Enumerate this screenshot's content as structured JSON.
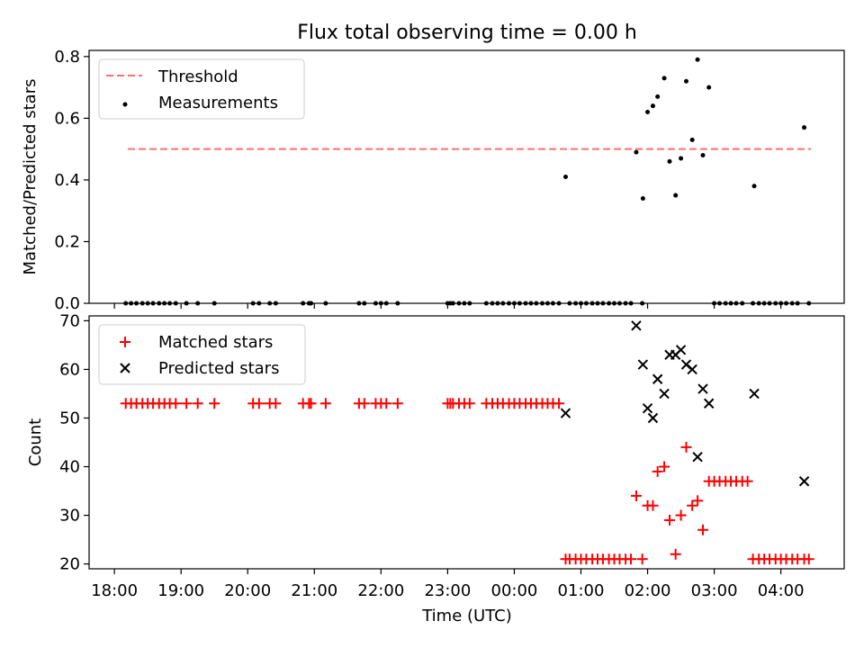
{
  "figure": {
    "title": "Flux total observing time = 0.00 h"
  },
  "chart_data": [
    {
      "type": "scatter",
      "ylabel": "Matched/Predicted stars",
      "ylim": [
        0,
        0.82
      ],
      "yticks": [
        "0.0",
        "0.2",
        "0.4",
        "0.6",
        "0.8"
      ],
      "ytick_values": [
        0,
        0.2,
        0.4,
        0.6,
        0.8
      ],
      "legend": {
        "placement": "upper-left",
        "entries": [
          "Threshold",
          "Measurements"
        ]
      },
      "threshold": {
        "name": "Threshold",
        "value": 0.5,
        "x_start": 0.2,
        "x_end": 10.45,
        "color": "#ff7070",
        "style": "dashed"
      },
      "series": [
        {
          "name": "Measurements",
          "color": "#000000",
          "marker": "dot",
          "points": [
            [
              0.17,
              0
            ],
            [
              0.25,
              0
            ],
            [
              0.33,
              0
            ],
            [
              0.42,
              0
            ],
            [
              0.5,
              0
            ],
            [
              0.58,
              0
            ],
            [
              0.67,
              0
            ],
            [
              0.75,
              0
            ],
            [
              0.83,
              0
            ],
            [
              0.92,
              0
            ],
            [
              1.08,
              0
            ],
            [
              1.25,
              0
            ],
            [
              1.5,
              0
            ],
            [
              2.08,
              0
            ],
            [
              2.17,
              0
            ],
            [
              2.33,
              0
            ],
            [
              2.42,
              0
            ],
            [
              2.83,
              0
            ],
            [
              2.92,
              0
            ],
            [
              2.95,
              0
            ],
            [
              3.17,
              0
            ],
            [
              3.67,
              0
            ],
            [
              3.75,
              0
            ],
            [
              3.92,
              0
            ],
            [
              4.0,
              0
            ],
            [
              4.08,
              0
            ],
            [
              4.25,
              0
            ],
            [
              5.0,
              0
            ],
            [
              5.04,
              0
            ],
            [
              5.08,
              0
            ],
            [
              5.17,
              0
            ],
            [
              5.25,
              0
            ],
            [
              5.33,
              0
            ],
            [
              5.58,
              0
            ],
            [
              5.67,
              0
            ],
            [
              5.75,
              0
            ],
            [
              5.83,
              0
            ],
            [
              5.92,
              0
            ],
            [
              6.0,
              0
            ],
            [
              6.08,
              0
            ],
            [
              6.17,
              0
            ],
            [
              6.25,
              0
            ],
            [
              6.33,
              0
            ],
            [
              6.42,
              0
            ],
            [
              6.5,
              0
            ],
            [
              6.58,
              0
            ],
            [
              6.67,
              0
            ],
            [
              6.83,
              0
            ],
            [
              6.92,
              0
            ],
            [
              7.0,
              0
            ],
            [
              7.08,
              0
            ],
            [
              7.17,
              0
            ],
            [
              7.25,
              0
            ],
            [
              7.33,
              0
            ],
            [
              7.42,
              0
            ],
            [
              7.5,
              0
            ],
            [
              7.58,
              0
            ],
            [
              7.67,
              0
            ],
            [
              7.75,
              0
            ],
            [
              7.92,
              0
            ],
            [
              9.0,
              0
            ],
            [
              9.08,
              0
            ],
            [
              9.17,
              0
            ],
            [
              9.25,
              0
            ],
            [
              9.33,
              0
            ],
            [
              9.42,
              0
            ],
            [
              9.58,
              0
            ],
            [
              9.67,
              0
            ],
            [
              9.75,
              0
            ],
            [
              9.83,
              0
            ],
            [
              9.92,
              0
            ],
            [
              10.0,
              0
            ],
            [
              10.08,
              0
            ],
            [
              10.17,
              0
            ],
            [
              10.25,
              0
            ],
            [
              10.42,
              0
            ],
            [
              6.77,
              0.41
            ],
            [
              7.83,
              0.49
            ],
            [
              7.93,
              0.34
            ],
            [
              8.0,
              0.62
            ],
            [
              8.08,
              0.64
            ],
            [
              8.15,
              0.67
            ],
            [
              8.25,
              0.73
            ],
            [
              8.33,
              0.46
            ],
            [
              8.42,
              0.35
            ],
            [
              8.5,
              0.47
            ],
            [
              8.58,
              0.72
            ],
            [
              8.67,
              0.53
            ],
            [
              8.75,
              0.79
            ],
            [
              8.83,
              0.48
            ],
            [
              8.92,
              0.7
            ],
            [
              9.6,
              0.38
            ],
            [
              10.35,
              0.57
            ]
          ]
        }
      ]
    },
    {
      "type": "scatter",
      "xlabel": "Time (UTC)",
      "ylabel": "Count",
      "ylim": [
        19,
        71
      ],
      "yticks": [
        "20",
        "30",
        "40",
        "50",
        "60",
        "70"
      ],
      "ytick_values": [
        20,
        30,
        40,
        50,
        60,
        70
      ],
      "xticks": [
        "18:00",
        "19:00",
        "20:00",
        "21:00",
        "22:00",
        "23:00",
        "00:00",
        "01:00",
        "02:00",
        "03:00",
        "04:00"
      ],
      "xtick_values": [
        0,
        1,
        2,
        3,
        4,
        5,
        6,
        7,
        8,
        9,
        10
      ],
      "xlim": [
        -0.38,
        10.95
      ],
      "legend": {
        "placement": "upper-left",
        "entries": [
          "Matched stars",
          "Predicted stars"
        ]
      },
      "series": [
        {
          "name": "Matched stars",
          "color": "#ff0000",
          "marker": "plus",
          "points": [
            [
              0.17,
              53
            ],
            [
              0.25,
              53
            ],
            [
              0.33,
              53
            ],
            [
              0.42,
              53
            ],
            [
              0.5,
              53
            ],
            [
              0.58,
              53
            ],
            [
              0.67,
              53
            ],
            [
              0.75,
              53
            ],
            [
              0.83,
              53
            ],
            [
              0.92,
              53
            ],
            [
              1.08,
              53
            ],
            [
              1.25,
              53
            ],
            [
              1.5,
              53
            ],
            [
              2.08,
              53
            ],
            [
              2.17,
              53
            ],
            [
              2.33,
              53
            ],
            [
              2.42,
              53
            ],
            [
              2.83,
              53
            ],
            [
              2.92,
              53
            ],
            [
              2.95,
              53
            ],
            [
              3.17,
              53
            ],
            [
              3.67,
              53
            ],
            [
              3.75,
              53
            ],
            [
              3.92,
              53
            ],
            [
              4.0,
              53
            ],
            [
              4.08,
              53
            ],
            [
              4.25,
              53
            ],
            [
              5.0,
              53
            ],
            [
              5.04,
              53
            ],
            [
              5.08,
              53
            ],
            [
              5.17,
              53
            ],
            [
              5.25,
              53
            ],
            [
              5.33,
              53
            ],
            [
              5.58,
              53
            ],
            [
              5.67,
              53
            ],
            [
              5.75,
              53
            ],
            [
              5.83,
              53
            ],
            [
              5.92,
              53
            ],
            [
              6.0,
              53
            ],
            [
              6.08,
              53
            ],
            [
              6.17,
              53
            ],
            [
              6.25,
              53
            ],
            [
              6.33,
              53
            ],
            [
              6.42,
              53
            ],
            [
              6.5,
              53
            ],
            [
              6.58,
              53
            ],
            [
              6.67,
              53
            ],
            [
              6.77,
              21
            ],
            [
              6.83,
              21
            ],
            [
              6.92,
              21
            ],
            [
              7.0,
              21
            ],
            [
              7.08,
              21
            ],
            [
              7.17,
              21
            ],
            [
              7.25,
              21
            ],
            [
              7.33,
              21
            ],
            [
              7.42,
              21
            ],
            [
              7.5,
              21
            ],
            [
              7.58,
              21
            ],
            [
              7.67,
              21
            ],
            [
              7.75,
              21
            ],
            [
              7.92,
              21
            ],
            [
              7.83,
              34
            ],
            [
              8.0,
              32
            ],
            [
              8.08,
              32
            ],
            [
              8.15,
              39
            ],
            [
              8.25,
              40
            ],
            [
              8.33,
              29
            ],
            [
              8.42,
              22
            ],
            [
              8.5,
              30
            ],
            [
              8.58,
              44
            ],
            [
              8.67,
              32
            ],
            [
              8.75,
              33
            ],
            [
              8.83,
              27
            ],
            [
              8.92,
              37
            ],
            [
              9.0,
              37
            ],
            [
              9.08,
              37
            ],
            [
              9.17,
              37
            ],
            [
              9.25,
              37
            ],
            [
              9.33,
              37
            ],
            [
              9.42,
              37
            ],
            [
              9.5,
              37
            ],
            [
              9.58,
              21
            ],
            [
              9.67,
              21
            ],
            [
              9.75,
              21
            ],
            [
              9.83,
              21
            ],
            [
              9.92,
              21
            ],
            [
              10.0,
              21
            ],
            [
              10.08,
              21
            ],
            [
              10.17,
              21
            ],
            [
              10.25,
              21
            ],
            [
              10.35,
              21
            ],
            [
              10.42,
              21
            ]
          ]
        },
        {
          "name": "Predicted stars",
          "color": "#000000",
          "marker": "x",
          "points": [
            [
              6.77,
              51
            ],
            [
              7.83,
              69
            ],
            [
              7.93,
              61
            ],
            [
              8.0,
              52
            ],
            [
              8.08,
              50
            ],
            [
              8.15,
              58
            ],
            [
              8.25,
              55
            ],
            [
              8.33,
              63
            ],
            [
              8.42,
              63
            ],
            [
              8.5,
              64
            ],
            [
              8.58,
              61
            ],
            [
              8.67,
              60
            ],
            [
              8.75,
              42
            ],
            [
              8.83,
              56
            ],
            [
              8.92,
              53
            ],
            [
              9.6,
              55
            ],
            [
              10.35,
              37
            ]
          ]
        }
      ]
    }
  ]
}
